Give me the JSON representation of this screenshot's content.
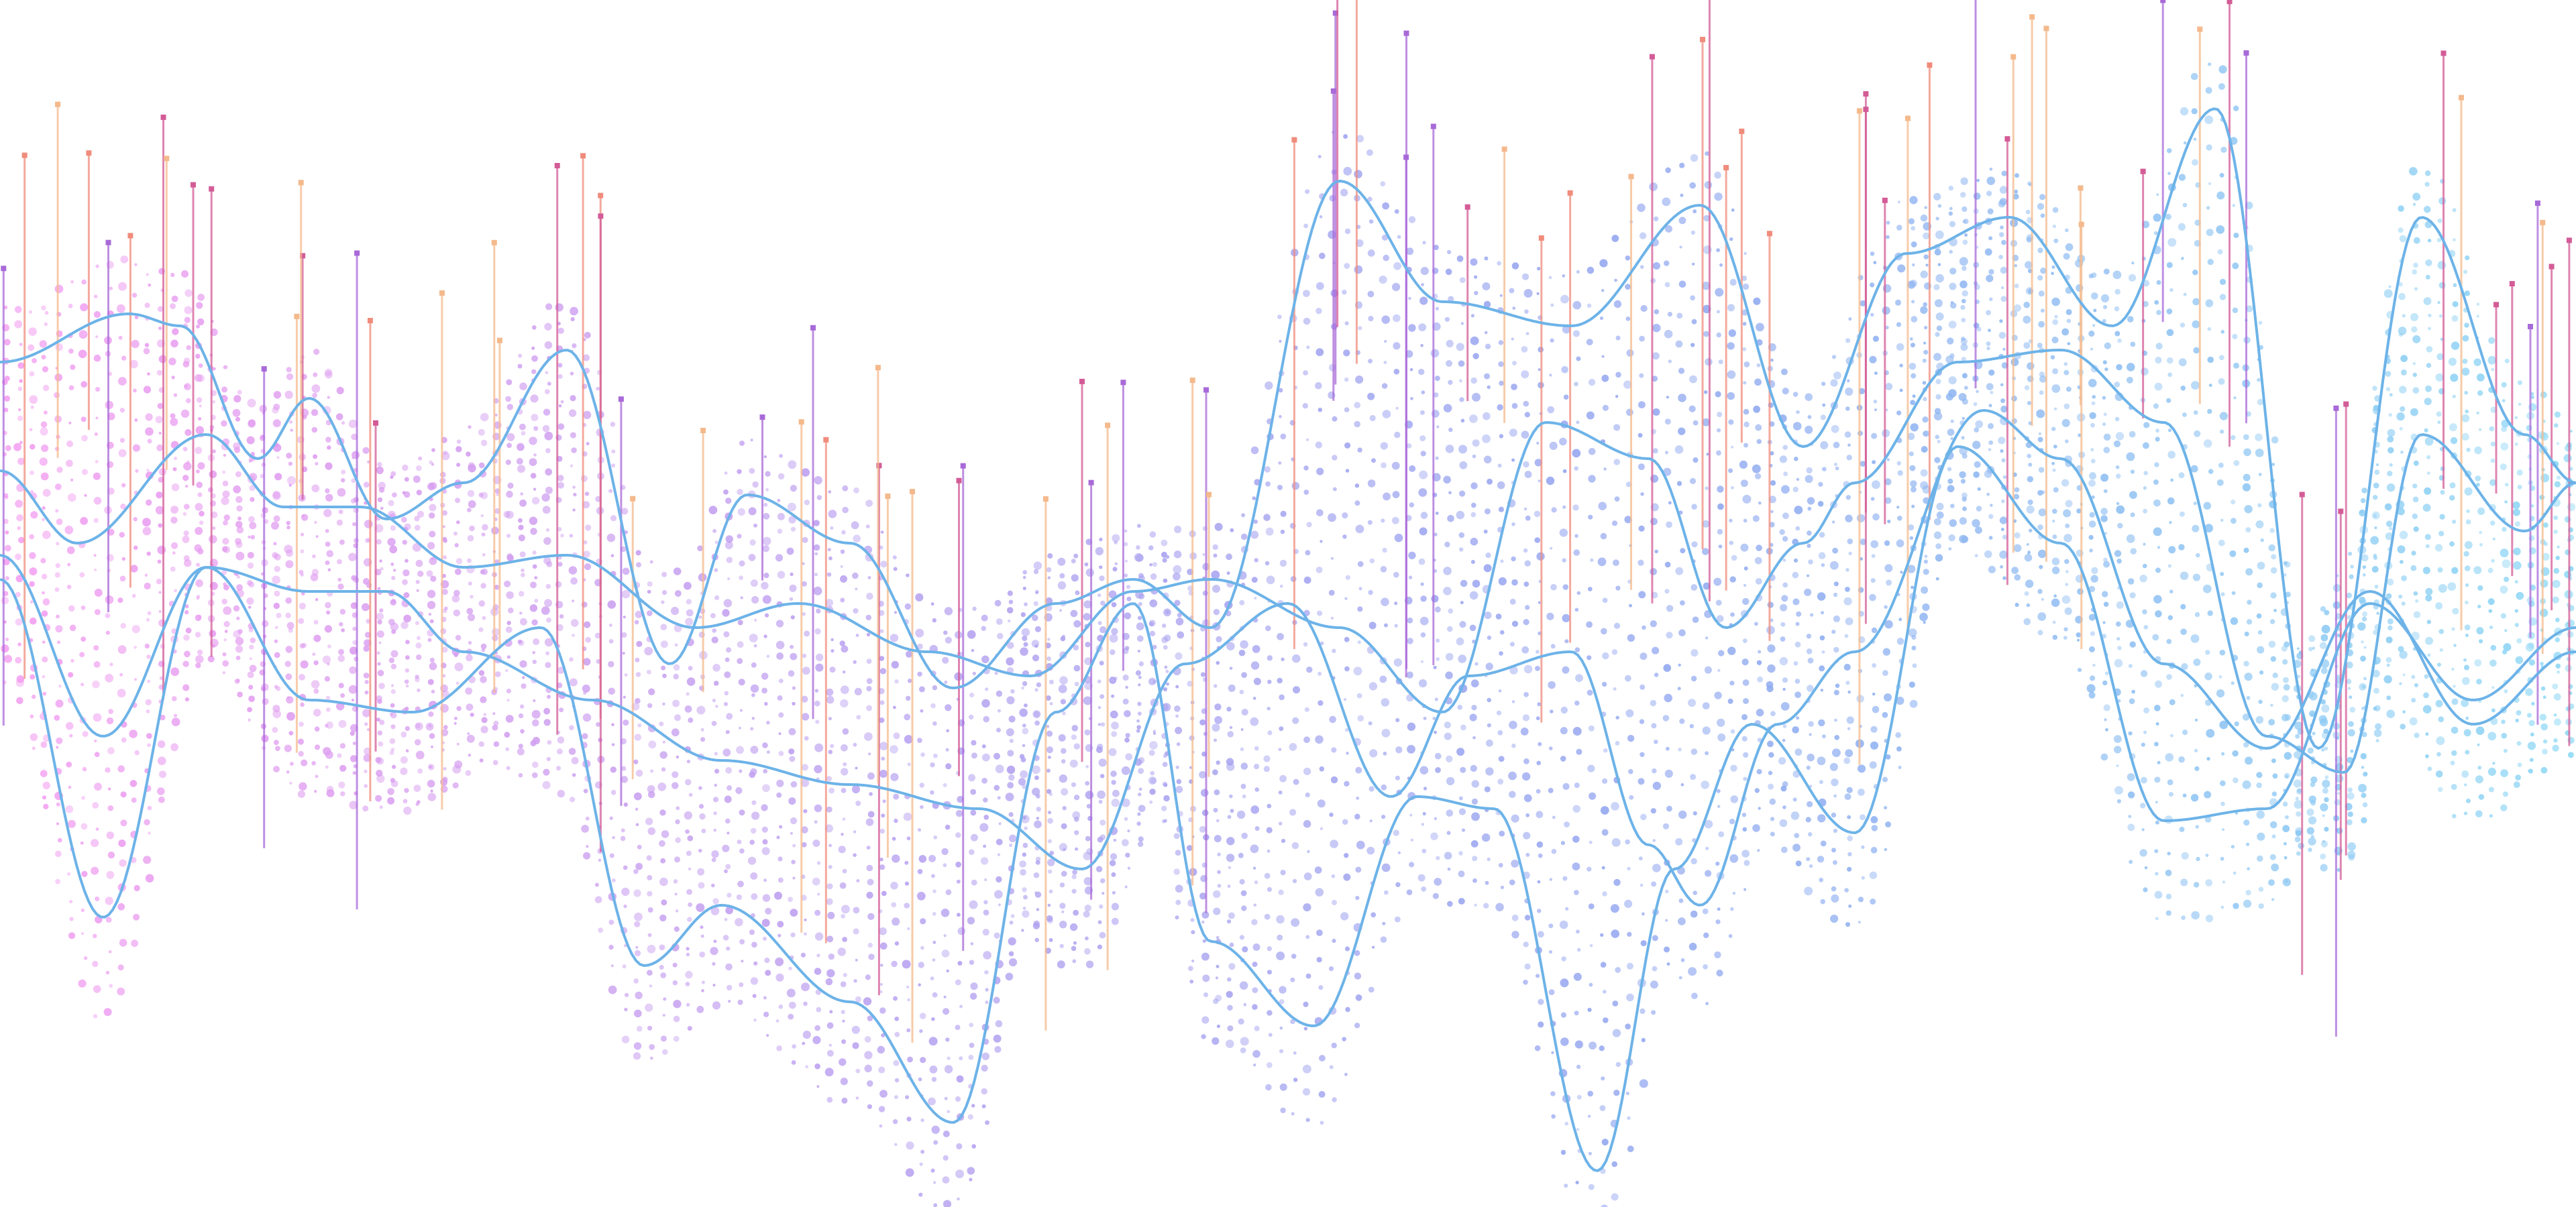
{
  "chart_data": {
    "type": "scatter",
    "title": "",
    "xlabel": "",
    "ylabel": "",
    "grid": false,
    "legend": "none",
    "xlim": [
      0,
      100
    ],
    "ylim": [
      -100,
      0
    ],
    "dot_gradient": [
      "#f49cf0",
      "#b9a0f0",
      "#8fa8f0",
      "#8cd8f5"
    ],
    "curve_color": "#6db3e8",
    "stem_colors": [
      "#f4b98c",
      "#d35c97",
      "#a86ad8",
      "#f08c7c"
    ],
    "series": [
      {
        "name": "",
        "x": [
          0,
          5,
          7,
          10,
          12,
          15,
          18,
          22,
          26,
          29,
          33,
          37,
          41,
          44,
          47,
          52,
          56,
          61,
          66,
          70,
          74,
          78,
          82,
          86,
          90,
          94,
          98,
          100
        ],
        "y": [
          -30,
          -26,
          -27,
          -38,
          -33,
          -43,
          -40,
          -29,
          -55,
          -41,
          -45,
          -57,
          -50,
          -48,
          -52,
          -15,
          -25,
          -27,
          -17,
          -37,
          -21,
          -18,
          -27,
          -9,
          -62,
          -18,
          -36,
          -40
        ]
      },
      {
        "name": "",
        "x": [
          0,
          3,
          8,
          11,
          14,
          18,
          22,
          27,
          31,
          36,
          40,
          44,
          47,
          52,
          56,
          60,
          64,
          67,
          70,
          72,
          76,
          80,
          84,
          88,
          91,
          94,
          98,
          100
        ],
        "y": [
          -39,
          -45,
          -36,
          -42,
          -42,
          -47,
          -46,
          -52,
          -50,
          -54,
          -56,
          -49,
          -48,
          -52,
          -59,
          -35,
          -38,
          -52,
          -45,
          -40,
          -30,
          -29,
          -35,
          -61,
          -64,
          -36,
          -44,
          -40
        ]
      },
      {
        "name": "",
        "x": [
          0,
          4,
          8,
          12,
          15,
          18,
          23,
          28,
          33,
          38,
          42,
          46,
          50,
          54,
          57,
          61,
          64,
          66,
          69,
          72,
          77,
          80,
          84,
          88,
          92,
          96,
          100
        ],
        "y": [
          -46,
          -61,
          -47,
          -49,
          -49,
          -54,
          -58,
          -63,
          -65,
          -67,
          -72,
          -55,
          -50,
          -66,
          -56,
          -54,
          -70,
          -75,
          -60,
          -54,
          -34,
          -38,
          -55,
          -62,
          -49,
          -60,
          -54
        ]
      },
      {
        "name": "",
        "x": [
          0,
          4,
          8,
          12,
          16,
          21,
          25,
          28,
          33,
          37,
          41,
          44,
          47,
          51,
          55,
          58,
          62,
          65,
          68,
          72,
          76,
          80,
          84,
          88,
          92,
          96,
          100
        ],
        "y": [
          -48,
          -76,
          -47,
          -58,
          -59,
          -52,
          -80,
          -75,
          -83,
          -93,
          -59,
          -50,
          -78,
          -85,
          -66,
          -67,
          -97,
          -72,
          -60,
          -69,
          -37,
          -45,
          -68,
          -67,
          -50,
          -58,
          -52
        ]
      }
    ]
  }
}
